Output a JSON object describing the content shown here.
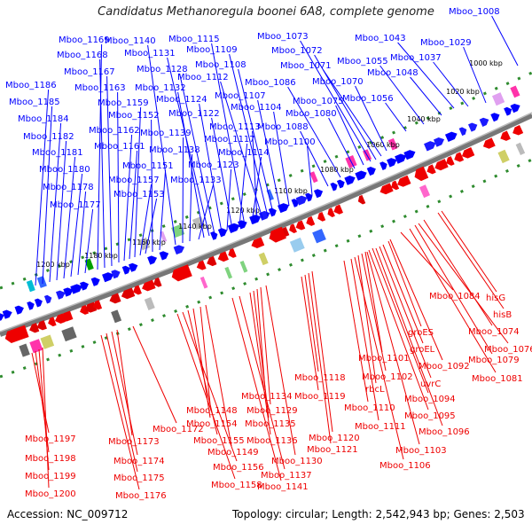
{
  "title": "Candidatus Methanoregula boonei 6A8, complete genome",
  "accession": "Accession: NC_009712",
  "topology": "Topology: circular; Length: 2,542,943 bp; Genes: 2,503",
  "ticks": [
    "1000 kbp",
    "1020 kbp",
    "1040 kbp",
    "1060 kbp",
    "1080 kbp",
    "1100 kbp",
    "1120 kbp",
    "1140 kbp",
    "1160 kbp",
    "1180 kbp",
    "1200 kbp"
  ],
  "top_labels": [
    "Mboo_1008",
    "Mboo_1029",
    "Mboo_1037",
    "Mboo_1043",
    "Mboo_1048",
    "Mboo_1055",
    "Mboo_1056",
    "Mboo_1070",
    "Mboo_1071",
    "Mboo_1072",
    "Mboo_1073",
    "Mboo_1075",
    "Mboo_1080",
    "Mboo_1086",
    "Mboo_1088",
    "Mboo_1100",
    "Mboo_1104",
    "Mboo_1107",
    "Mboo_1108",
    "Mboo_1109",
    "Mboo_1112",
    "Mboo_1113",
    "Mboo_1114",
    "Mboo_1115",
    "Mboo_1117",
    "Mboo_1122",
    "Mboo_1123",
    "Mboo_1124",
    "Mboo_1128",
    "Mboo_1131",
    "Mboo_1132",
    "Mboo_1133",
    "Mboo_1138",
    "Mboo_1139",
    "Mboo_1140",
    "Mboo_1151",
    "Mboo_1152",
    "Mboo_1153",
    "Mboo_1157",
    "Mboo_1159",
    "Mboo_1161",
    "Mboo_1162",
    "Mboo_1163",
    "Mboo_1167",
    "Mboo_1168",
    "Mboo_1169",
    "Mboo_1177",
    "Mboo_1178",
    "Mboo_1180",
    "Mboo_1181",
    "Mboo_1182",
    "Mboo_1184",
    "Mboo_1185",
    "Mboo_1186"
  ],
  "bottom_labels": [
    "hisG",
    "hisB",
    "Mboo_1084",
    "Mboo_1074",
    "Mboo_1076",
    "Mboo_1079",
    "Mboo_1081",
    "groES",
    "groEL",
    "Mboo_1092",
    "Mboo_1101",
    "Mboo_1102",
    "uvrC",
    "rbcL",
    "Mboo_1094",
    "Mboo_1095",
    "Mboo_1096",
    "Mboo_1110",
    "Mboo_1111",
    "Mboo_1103",
    "Mboo_1106",
    "Mboo_1118",
    "Mboo_1119",
    "Mboo_1120",
    "Mboo_1121",
    "Mboo_1134",
    "Mboo_1129",
    "Mboo_1135",
    "Mboo_1136",
    "Mboo_1130",
    "Mboo_1137",
    "Mboo_1141",
    "Mboo_1148",
    "Mboo_1154",
    "Mboo_1155",
    "Mboo_1149",
    "Mboo_1156",
    "Mboo_1158",
    "Mboo_1172",
    "Mboo_1173",
    "Mboo_1174",
    "Mboo_1175",
    "Mboo_1176",
    "Mboo_1197",
    "Mboo_1198",
    "Mboo_1199",
    "Mboo_1200"
  ],
  "colors": {
    "forward": "#0000ff",
    "reverse": "#ee0000",
    "backbone": "#888888",
    "tick_mark": "#2e8b2e"
  }
}
